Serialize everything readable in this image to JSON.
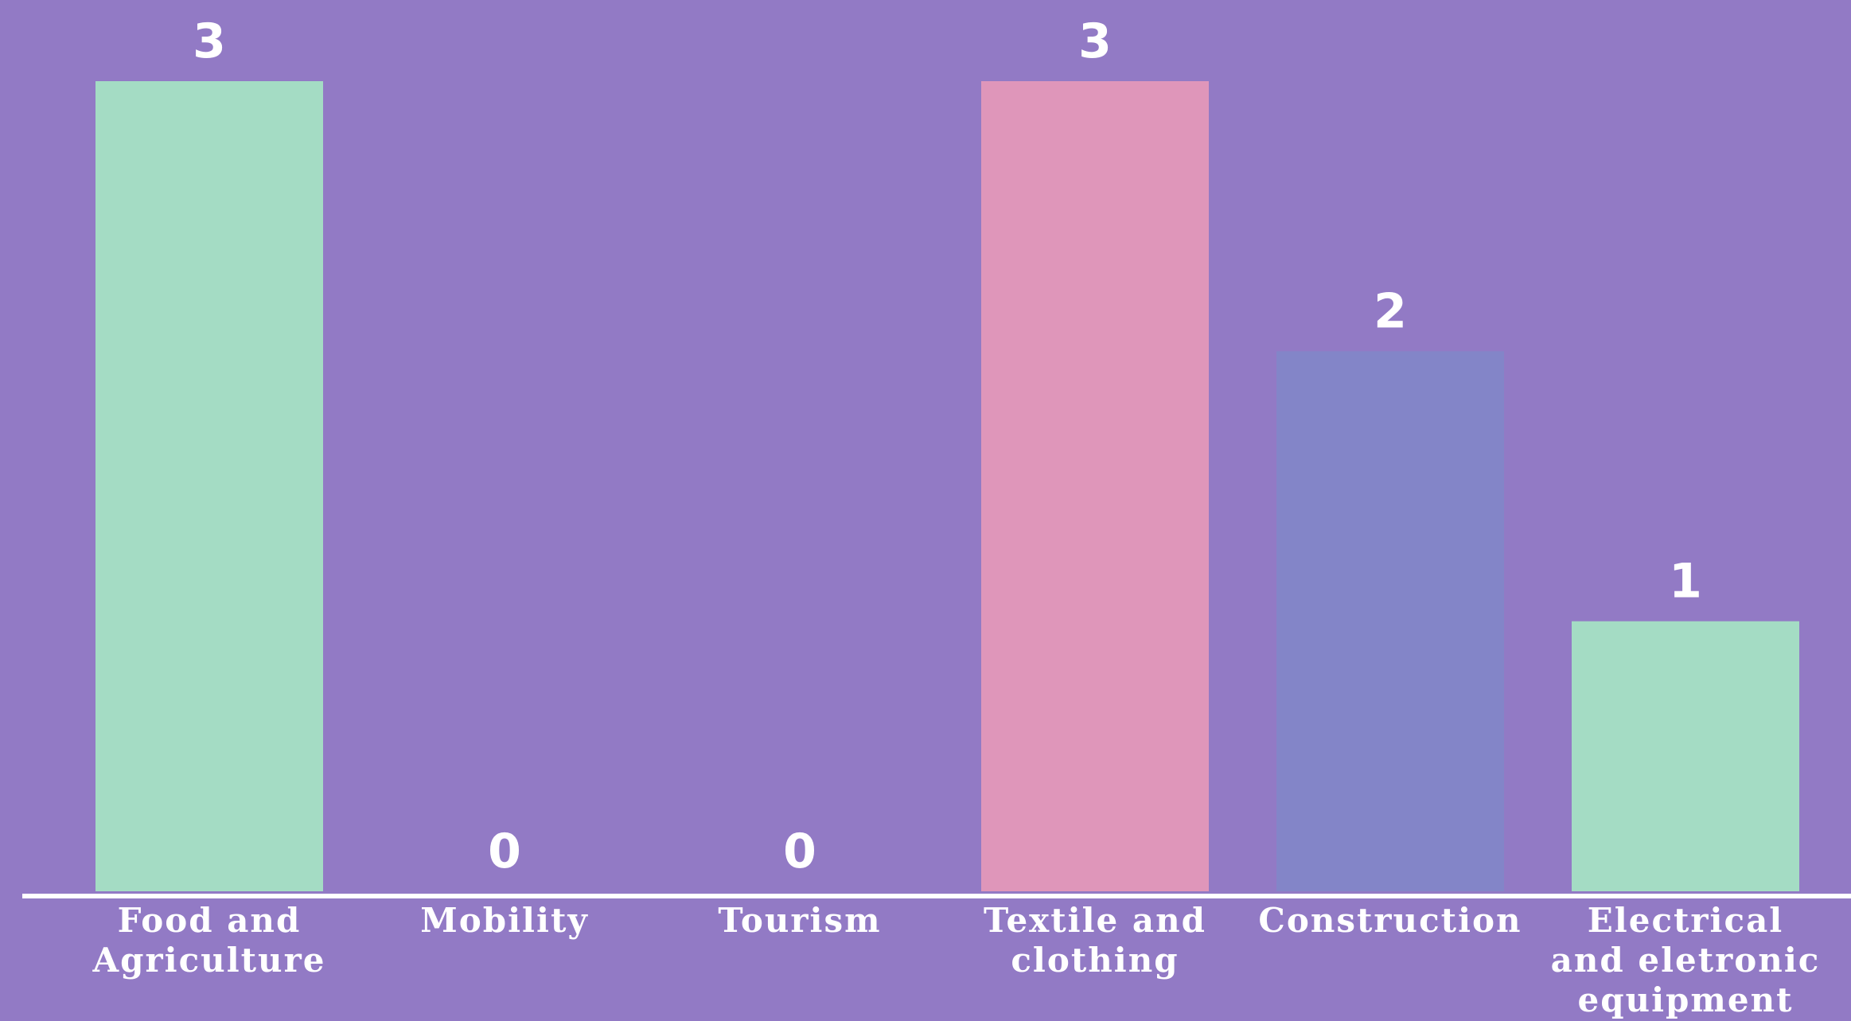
{
  "chart_data": {
    "type": "bar",
    "categories": [
      [
        "Food and",
        "Agriculture"
      ],
      [
        "Mobility"
      ],
      [
        "Tourism"
      ],
      [
        "Textile and",
        "clothing"
      ],
      [
        "Construction"
      ],
      [
        "Electrical",
        "and eletronic",
        "equipment"
      ]
    ],
    "values": [
      3,
      0,
      0,
      3,
      2,
      1
    ],
    "bar_colors": [
      "#a4dcc4",
      "#a4dcc4",
      "#a4dcc4",
      "#df96ba",
      "#8385c8",
      "#a4dcc4"
    ],
    "ylim": [
      0,
      3
    ],
    "grid": false,
    "legend": "none"
  },
  "style": {
    "background": "#927ac5",
    "axis_color": "#ffffff",
    "text_color": "#ffffff"
  }
}
